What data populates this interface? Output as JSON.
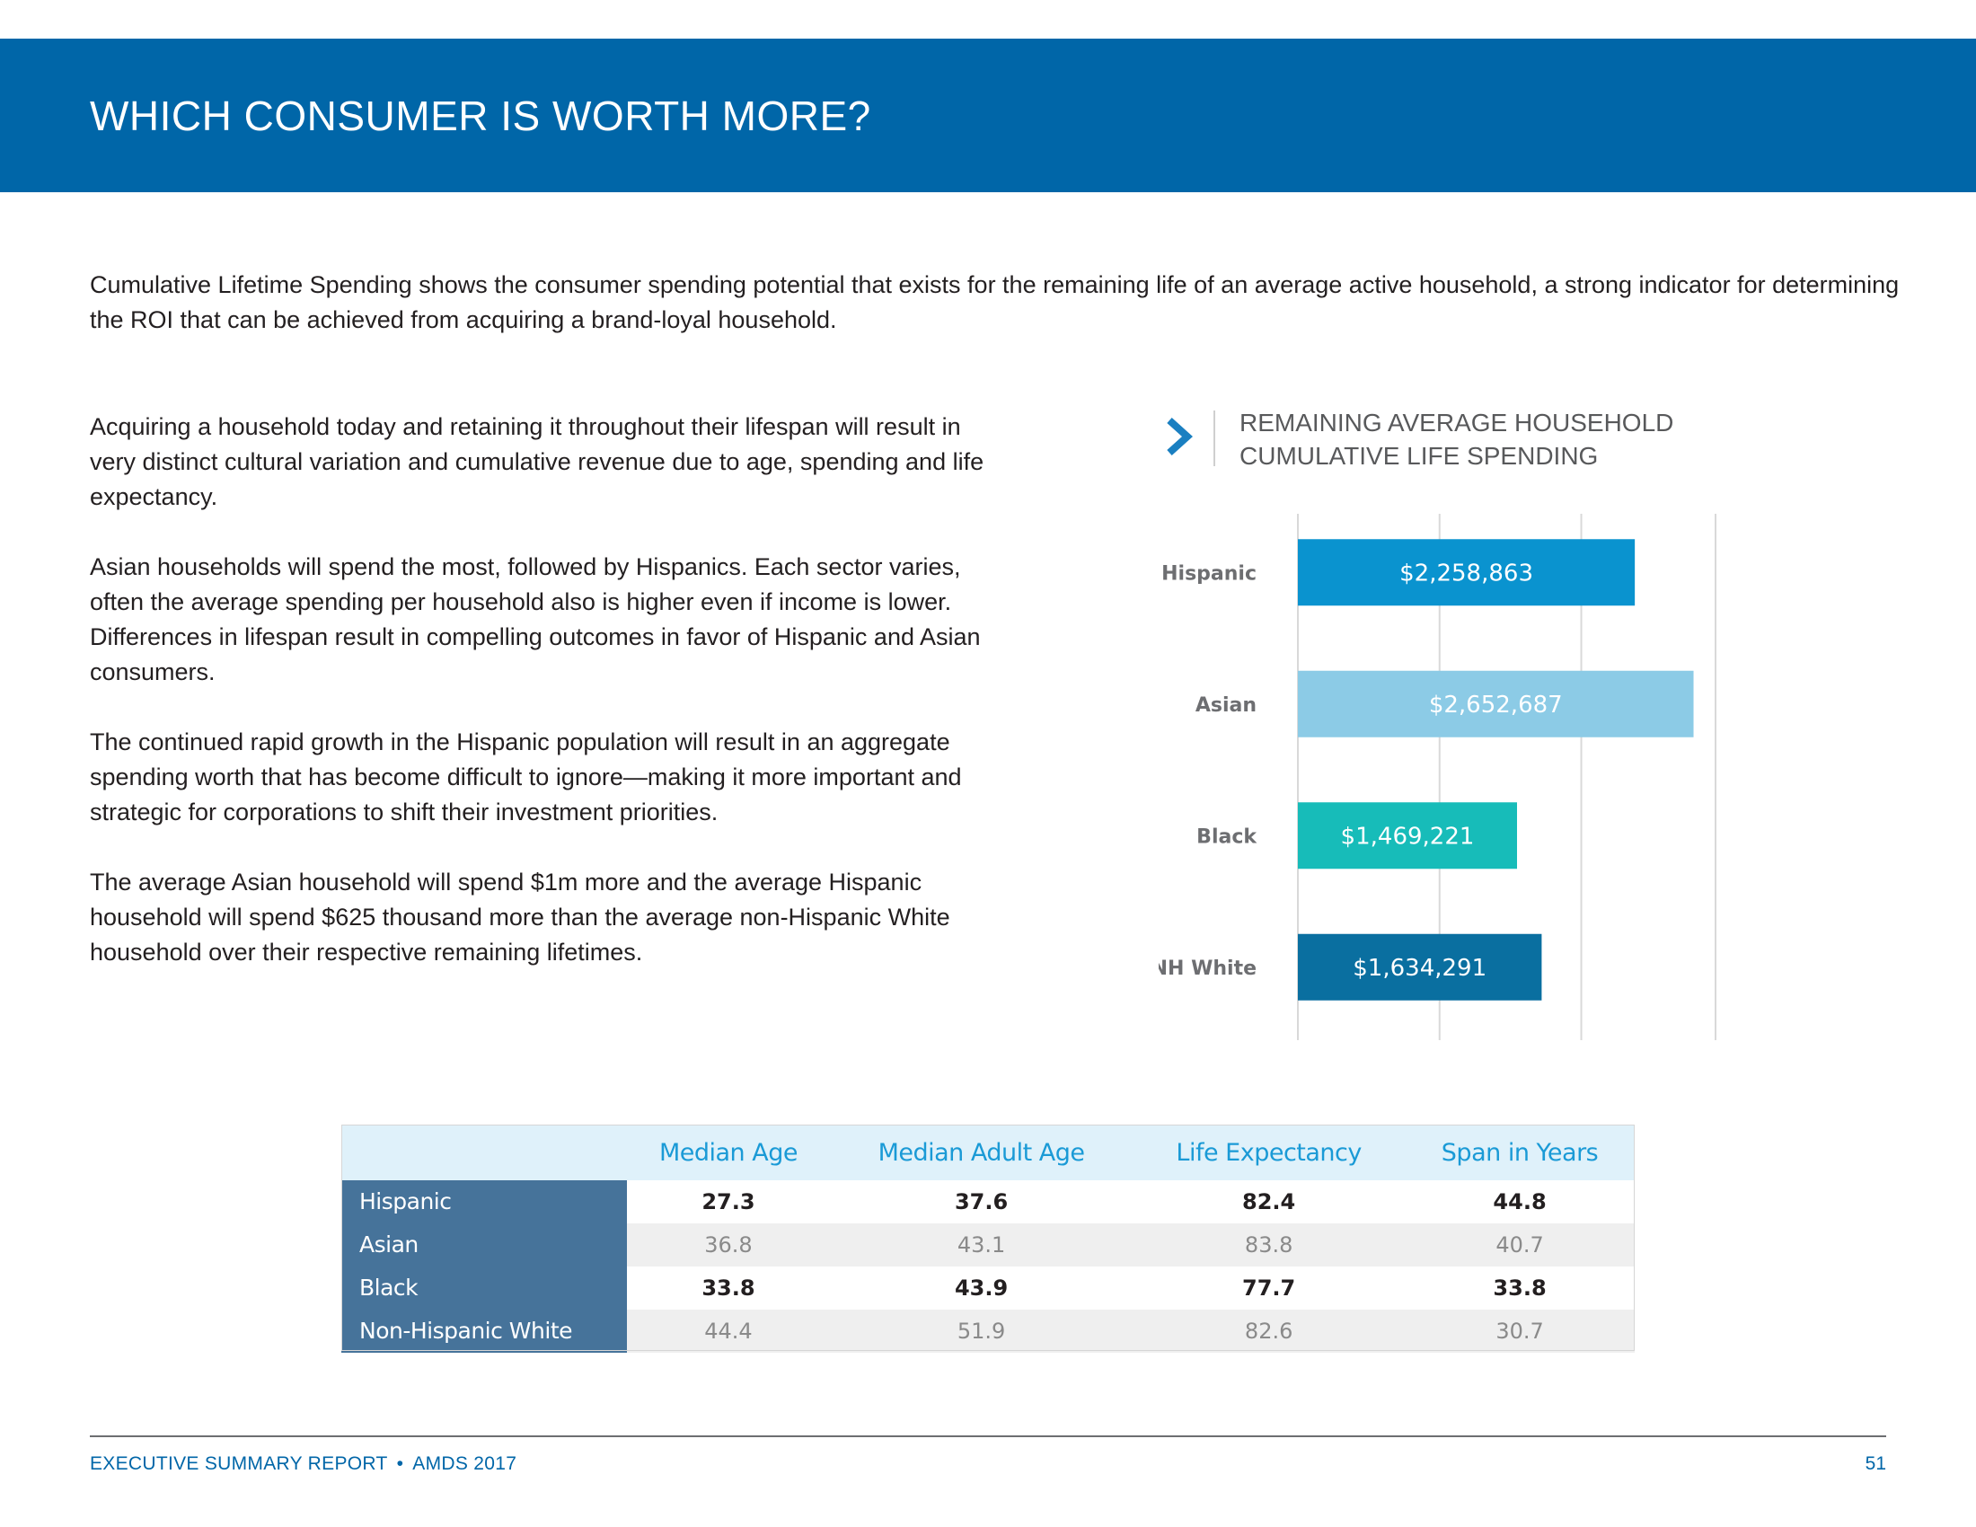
{
  "header": {
    "title": "WHICH CONSUMER IS WORTH MORE?"
  },
  "intro": "Cumulative Lifetime Spending shows the consumer spending potential that exists for the remaining life of an average active household, a strong indicator for determining the ROI that can be achieved from acquiring a brand-loyal household.",
  "body": {
    "paragraphs": [
      "Acquiring a household today and retaining it throughout their lifespan will result in very distinct cultural variation and cumulative revenue due to age, spending and life expectancy.",
      "Asian households will spend the most, followed by Hispanics. Each sector varies, often the average spending per household also is higher even if income is lower. Differences in lifespan result in compelling outcomes in favor of Hispanic and Asian consumers.",
      "The continued rapid growth in the Hispanic population will result in an aggregate spending worth that has become difficult to ignore—making it more important and strategic for corporations to shift their investment priorities.",
      "The average Asian household will spend $1m more and the average Hispanic household will spend $625 thousand more than the average non-Hispanic White household over their respective remaining lifetimes."
    ]
  },
  "chart_data": {
    "type": "bar",
    "orientation": "horizontal",
    "title_lines": [
      "REMAINING AVERAGE HOUSEHOLD",
      "CUMULATIVE LIFE SPENDING"
    ],
    "categories": [
      "Hispanic",
      "Asian",
      "Black",
      "NH White"
    ],
    "values": [
      2258863,
      2652687,
      1469221,
      1634291
    ],
    "labels": [
      "$2,258,863",
      "$2,652,687",
      "$1,469,221",
      "$1,634,291"
    ],
    "colors": [
      "#0a93cf",
      "#8ccbe6",
      "#17bcb9",
      "#0a6fa0"
    ],
    "xlim": [
      0,
      2800000
    ],
    "gridlines": [
      0,
      950000,
      1900000,
      2850000
    ],
    "xlabel": "",
    "ylabel": "",
    "legend": "none"
  },
  "table": {
    "columns": [
      "Median Age",
      "Median Adult Age",
      "Life Expectancy",
      "Span in Years"
    ],
    "rows": [
      {
        "label": "Hispanic",
        "values": [
          "27.3",
          "37.6",
          "82.4",
          "44.8"
        ]
      },
      {
        "label": "Asian",
        "values": [
          "36.8",
          "43.1",
          "83.8",
          "40.7"
        ]
      },
      {
        "label": "Black",
        "values": [
          "33.8",
          "43.9",
          "77.7",
          "33.8"
        ]
      },
      {
        "label": "Non-Hispanic White",
        "values": [
          "44.4",
          "51.9",
          "82.6",
          "30.7"
        ]
      }
    ]
  },
  "footer": {
    "report": "EXECUTIVE SUMMARY REPORT",
    "bullet": "•",
    "org": "AMDS 2017",
    "page": "51"
  },
  "colors": {
    "brand_blue": "#0066a8",
    "row_header": "#46739a",
    "table_header_bg": "#dff1fa",
    "table_header_text": "#1a9ad6"
  }
}
